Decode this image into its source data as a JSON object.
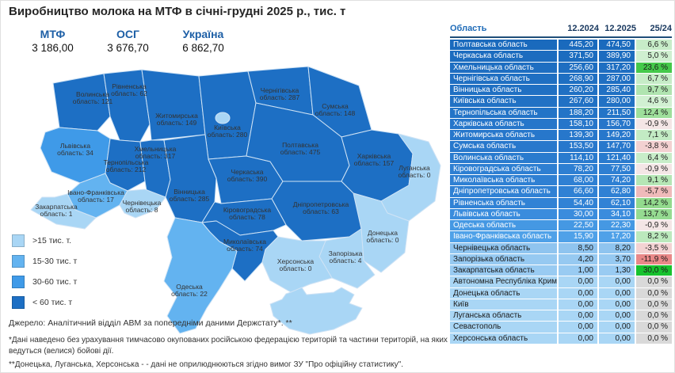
{
  "title": "Виробництво молока на МТФ в січні-грудні 2025 р., тис. т",
  "kpis": [
    {
      "label": "МТФ",
      "value": "3 186,00"
    },
    {
      "label": "ОСГ",
      "value": "3 676,70"
    },
    {
      "label": "Україна",
      "value": "6 862,70"
    }
  ],
  "legend": [
    {
      "label": ">15 тис. т.",
      "color": "#a9d6f5"
    },
    {
      "label": "15-30 тис. т",
      "color": "#63b3f0"
    },
    {
      "label": "30-60 тис. т",
      "color": "#3f9ae8"
    },
    {
      "label": "< 60 тис. т",
      "color": "#1d6fc4"
    }
  ],
  "source": "Джерело: Аналітичний відділ АВМ за попередніми даними Держстату*. **",
  "footnotes": [
    "*Дані наведено без урахування тимчасово окупованих російською федерацією територій та частини територій, на яких ведуться (велися) бойові дії.",
    "**Донецька, Луганська, Херсонська - - дані не оприлюднюються згідно вимог ЗУ \"Про офіційну статистику\"."
  ],
  "map": {
    "regions": [
      {
        "name": "Волинська область",
        "line1": "Волинська",
        "line2": "область: 121",
        "band": "dark"
      },
      {
        "name": "Рівненська область",
        "line1": "Рівненська",
        "line2": "область: 62",
        "band": "dark"
      },
      {
        "name": "Житомирська область",
        "line1": "Житомирська",
        "line2": "область: 149",
        "band": "dark"
      },
      {
        "name": "Київська область",
        "line1": "Київська",
        "line2": "область: 280",
        "band": "dark"
      },
      {
        "name": "Чернігівська область",
        "line1": "Чернігівська",
        "line2": "область: 287",
        "band": "dark"
      },
      {
        "name": "Сумська область",
        "line1": "Сумська",
        "line2": "область: 148",
        "band": "dark"
      },
      {
        "name": "Львівська область",
        "line1": "Львівська",
        "line2": "область: 34",
        "band": "mid"
      },
      {
        "name": "Тернопільська область",
        "line1": "Тернопільська",
        "line2": "область: 212",
        "band": "dark"
      },
      {
        "name": "Хмельницька область",
        "line1": "Хмельницька",
        "line2": "область: 317",
        "band": "dark"
      },
      {
        "name": "Вінницька область",
        "line1": "Вінницька",
        "line2": "область: 285",
        "band": "dark"
      },
      {
        "name": "Черкаська область",
        "line1": "Черкаська",
        "line2": "область: 390",
        "band": "dark"
      },
      {
        "name": "Полтавська область",
        "line1": "Полтавська",
        "line2": "область: 475",
        "band": "dark"
      },
      {
        "name": "Харківська область",
        "line1": "Харківська",
        "line2": "область: 157",
        "band": "dark"
      },
      {
        "name": "Луганська область",
        "line1": "Луганська",
        "line2": "область: 0",
        "band": "lightest"
      },
      {
        "name": "Донецька область",
        "line1": "Донецька",
        "line2": "область: 0",
        "band": "lightest"
      },
      {
        "name": "Дніпропетровська область",
        "line1": "Дніпропетровська",
        "line2": "область: 63",
        "band": "dark"
      },
      {
        "name": "Кіровоградська область",
        "line1": "Кіровоградська",
        "line2": "область: 78",
        "band": "dark"
      },
      {
        "name": "Миколаївська область",
        "line1": "Миколаївська",
        "line2": "область: 74",
        "band": "dark"
      },
      {
        "name": "Запорізька область",
        "line1": "Запорізька",
        "line2": "область: 4",
        "band": "lightest"
      },
      {
        "name": "Херсонська область",
        "line1": "Херсонська",
        "line2": "область: 0",
        "band": "lightest"
      },
      {
        "name": "Одеська область",
        "line1": "Одеська",
        "line2": "область: 22",
        "band": "light"
      },
      {
        "name": "Івано-Франківська область",
        "line1": "Івано-Франківська",
        "line2": "область: 17",
        "band": "light"
      },
      {
        "name": "Чернівецька область",
        "line1": "Чернівецька",
        "line2": "область: 8",
        "band": "lightest"
      },
      {
        "name": "Закарпатська область",
        "line1": "Закарпатська",
        "line2": "область: 1",
        "band": "lightest"
      },
      {
        "name": "Автономна Республіка Крим",
        "line1": "",
        "line2": "",
        "band": "lightest"
      }
    ]
  },
  "table": {
    "headers": [
      "Область",
      "12.2024",
      "12.2025",
      "25/24"
    ],
    "rows": [
      {
        "name": "Полтавська область",
        "v1": "445,20",
        "v2": "474,50",
        "pct": "6,6 %",
        "bg": "#1a6abd",
        "dark_text": false,
        "pct_bg": "#c7ecc8"
      },
      {
        "name": "Черкаська область",
        "v1": "371,50",
        "v2": "389,90",
        "pct": "5,0 %",
        "bg": "#1c6cbf",
        "dark_text": false,
        "pct_bg": "#cfefd0"
      },
      {
        "name": "Хмельницька область",
        "v1": "256,60",
        "v2": "317,20",
        "pct": "23,6 %",
        "bg": "#1e6ec1",
        "dark_text": false,
        "pct_bg": "#44c94a"
      },
      {
        "name": "Чернігівська область",
        "v1": "268,90",
        "v2": "287,00",
        "pct": "6,7 %",
        "bg": "#1f6fc2",
        "dark_text": false,
        "pct_bg": "#c6ecc7"
      },
      {
        "name": "Вінницька область",
        "v1": "260,20",
        "v2": "285,40",
        "pct": "9,7 %",
        "bg": "#2070c3",
        "dark_text": false,
        "pct_bg": "#b0e4b0"
      },
      {
        "name": "Київська область",
        "v1": "267,60",
        "v2": "280,00",
        "pct": "4,6 %",
        "bg": "#2171c4",
        "dark_text": false,
        "pct_bg": "#d1f0d2"
      },
      {
        "name": "Тернопільська область",
        "v1": "188,20",
        "v2": "211,50",
        "pct": "12,4 %",
        "bg": "#2374c7",
        "dark_text": false,
        "pct_bg": "#9edf9b"
      },
      {
        "name": "Харківська область",
        "v1": "158,10",
        "v2": "156,70",
        "pct": "-0,9 %",
        "bg": "#2676ca",
        "dark_text": false,
        "pct_bg": "#f4e6e6"
      },
      {
        "name": "Житомирська область",
        "v1": "139,30",
        "v2": "149,20",
        "pct": "7,1 %",
        "bg": "#2777cb",
        "dark_text": false,
        "pct_bg": "#c3ebc4"
      },
      {
        "name": "Сумська область",
        "v1": "153,50",
        "v2": "147,70",
        "pct": "-3,8 %",
        "bg": "#2878cc",
        "dark_text": false,
        "pct_bg": "#f3d1d1"
      },
      {
        "name": "Волинська область",
        "v1": "114,10",
        "v2": "121,40",
        "pct": "6,4 %",
        "bg": "#2a7bce",
        "dark_text": false,
        "pct_bg": "#c8edc9"
      },
      {
        "name": "Кіровоградська область",
        "v1": "78,20",
        "v2": "77,50",
        "pct": "-0,9 %",
        "bg": "#2e7fd2",
        "dark_text": false,
        "pct_bg": "#f4e6e6"
      },
      {
        "name": "Миколаївська область",
        "v1": "68,00",
        "v2": "74,20",
        "pct": "9,1 %",
        "bg": "#2f80d3",
        "dark_text": false,
        "pct_bg": "#b5e6b5"
      },
      {
        "name": "Дніпропетровська область",
        "v1": "66,60",
        "v2": "62,80",
        "pct": "-5,7 %",
        "bg": "#3081d4",
        "dark_text": false,
        "pct_bg": "#efbaba"
      },
      {
        "name": "Рівненська область",
        "v1": "54,40",
        "v2": "62,10",
        "pct": "14,2 %",
        "bg": "#3182d5",
        "dark_text": false,
        "pct_bg": "#92da8d"
      },
      {
        "name": "Львівська область",
        "v1": "30,00",
        "v2": "34,10",
        "pct": "13,7 %",
        "bg": "#3a8cdd",
        "dark_text": false,
        "pct_bg": "#95db91"
      },
      {
        "name": "Одеська область",
        "v1": "22,50",
        "v2": "22,30",
        "pct": "-0,9 %",
        "bg": "#4598e3",
        "dark_text": false,
        "pct_bg": "#f4e6e6"
      },
      {
        "name": "Івано-Франківська область",
        "v1": "15,90",
        "v2": "17,20",
        "pct": "8,2 %",
        "bg": "#4fa1e8",
        "dark_text": false,
        "pct_bg": "#bce9bd"
      },
      {
        "name": "Чернівецька область",
        "v1": "8,50",
        "v2": "8,20",
        "pct": "-3,5 %",
        "bg": "#8fc4ef",
        "dark_text": true,
        "pct_bg": "#f3d3d3"
      },
      {
        "name": "Запорізька область",
        "v1": "4,20",
        "v2": "3,70",
        "pct": "-11,9 %",
        "bg": "#96c9f1",
        "dark_text": true,
        "pct_bg": "#e98888"
      },
      {
        "name": "Закарпатська область",
        "v1": "1,00",
        "v2": "1,30",
        "pct": "30,0 %",
        "bg": "#99cbf2",
        "dark_text": true,
        "pct_bg": "#17c22e"
      },
      {
        "name": "Автономна Республіка Крим",
        "v1": "0,00",
        "v2": "0,00",
        "pct": "0,0 %",
        "bg": "#a9d6f5",
        "dark_text": true,
        "pct_bg": "#d9d9d9"
      },
      {
        "name": "Донецька область",
        "v1": "0,00",
        "v2": "0,00",
        "pct": "0,0 %",
        "bg": "#a9d6f5",
        "dark_text": true,
        "pct_bg": "#d9d9d9"
      },
      {
        "name": "Київ",
        "v1": "0,00",
        "v2": "0,00",
        "pct": "0,0 %",
        "bg": "#a9d6f5",
        "dark_text": true,
        "pct_bg": "#d9d9d9"
      },
      {
        "name": "Луганська область",
        "v1": "0,00",
        "v2": "0,00",
        "pct": "0,0 %",
        "bg": "#a9d6f5",
        "dark_text": true,
        "pct_bg": "#d9d9d9"
      },
      {
        "name": "Севастополь",
        "v1": "0,00",
        "v2": "0,00",
        "pct": "0,0 %",
        "bg": "#a9d6f5",
        "dark_text": true,
        "pct_bg": "#d9d9d9"
      },
      {
        "name": "Херсонська область",
        "v1": "0,00",
        "v2": "0,00",
        "pct": "0,0 %",
        "bg": "#a9d6f5",
        "dark_text": true,
        "pct_bg": "#d9d9d9"
      }
    ]
  },
  "chart_data": [
    {
      "type": "heatmap",
      "subtype": "choropleth_map_ukraine",
      "title": "Виробництво молока на МТФ в січні-грудні 2025 р., тис. т",
      "unit": "тис. т",
      "totals": {
        "МТФ": 3186.0,
        "ОСГ": 3676.7,
        "Україна": 6862.7
      },
      "legend_bins": [
        ">15 тис. т.",
        "15-30 тис. т",
        "30-60 тис. т",
        "< 60 тис. т"
      ],
      "regions": [
        {
          "name": "Волинська",
          "value": 121
        },
        {
          "name": "Рівненська",
          "value": 62
        },
        {
          "name": "Житомирська",
          "value": 149
        },
        {
          "name": "Київська",
          "value": 280
        },
        {
          "name": "Чернігівська",
          "value": 287
        },
        {
          "name": "Сумська",
          "value": 148
        },
        {
          "name": "Львівська",
          "value": 34
        },
        {
          "name": "Тернопільська",
          "value": 212
        },
        {
          "name": "Хмельницька",
          "value": 317
        },
        {
          "name": "Вінницька",
          "value": 285
        },
        {
          "name": "Черкаська",
          "value": 390
        },
        {
          "name": "Полтавська",
          "value": 475
        },
        {
          "name": "Харківська",
          "value": 157
        },
        {
          "name": "Луганська",
          "value": 0
        },
        {
          "name": "Донецька",
          "value": 0
        },
        {
          "name": "Дніпропетровська",
          "value": 63
        },
        {
          "name": "Кіровоградська",
          "value": 78
        },
        {
          "name": "Миколаївська",
          "value": 74
        },
        {
          "name": "Запорізька",
          "value": 4
        },
        {
          "name": "Херсонська",
          "value": 0
        },
        {
          "name": "Одеська",
          "value": 22
        },
        {
          "name": "Івано-Франківська",
          "value": 17
        },
        {
          "name": "Чернівецька",
          "value": 8
        },
        {
          "name": "Закарпатська",
          "value": 1
        }
      ]
    },
    {
      "type": "table",
      "columns": [
        "Область",
        "12.2024",
        "12.2025",
        "25/24"
      ],
      "rows": [
        [
          "Полтавська область",
          445.2,
          474.5,
          6.6
        ],
        [
          "Черкаська область",
          371.5,
          389.9,
          5.0
        ],
        [
          "Хмельницька область",
          256.6,
          317.2,
          23.6
        ],
        [
          "Чернігівська область",
          268.9,
          287.0,
          6.7
        ],
        [
          "Вінницька область",
          260.2,
          285.4,
          9.7
        ],
        [
          "Київська область",
          267.6,
          280.0,
          4.6
        ],
        [
          "Тернопільська область",
          188.2,
          211.5,
          12.4
        ],
        [
          "Харківська область",
          158.1,
          156.7,
          -0.9
        ],
        [
          "Житомирська область",
          139.3,
          149.2,
          7.1
        ],
        [
          "Сумська область",
          153.5,
          147.7,
          -3.8
        ],
        [
          "Волинська область",
          114.1,
          121.4,
          6.4
        ],
        [
          "Кіровоградська область",
          78.2,
          77.5,
          -0.9
        ],
        [
          "Миколаївська область",
          68.0,
          74.2,
          9.1
        ],
        [
          "Дніпропетровська область",
          66.6,
          62.8,
          -5.7
        ],
        [
          "Рівненська область",
          54.4,
          62.1,
          14.2
        ],
        [
          "Львівська область",
          30.0,
          34.1,
          13.7
        ],
        [
          "Одеська область",
          22.5,
          22.3,
          -0.9
        ],
        [
          "Івано-Франківська область",
          15.9,
          17.2,
          8.2
        ],
        [
          "Чернівецька область",
          8.5,
          8.2,
          -3.5
        ],
        [
          "Запорізька область",
          4.2,
          3.7,
          -11.9
        ],
        [
          "Закарпатська область",
          1.0,
          1.3,
          30.0
        ],
        [
          "Автономна Республіка Крим",
          0.0,
          0.0,
          0.0
        ],
        [
          "Донецька область",
          0.0,
          0.0,
          0.0
        ],
        [
          "Київ",
          0.0,
          0.0,
          0.0
        ],
        [
          "Луганська область",
          0.0,
          0.0,
          0.0
        ],
        [
          "Севастополь",
          0.0,
          0.0,
          0.0
        ],
        [
          "Херсонська область",
          0.0,
          0.0,
          0.0
        ]
      ]
    }
  ]
}
